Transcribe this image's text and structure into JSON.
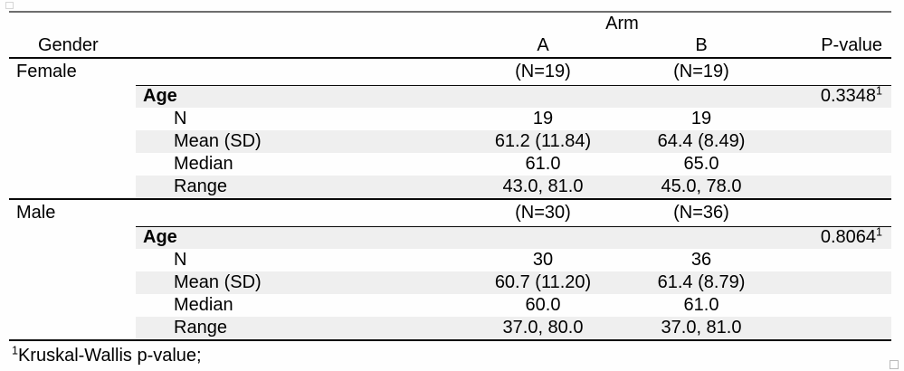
{
  "colors": {
    "top_rule": "#6e6e6e",
    "black_rule": "#0a0a0a",
    "row_shade": "#efefef",
    "text": "#000000"
  },
  "table": {
    "header": {
      "arm_label": "Arm",
      "gender_label": "Gender",
      "col_a": "A",
      "col_b": "B",
      "p_value_label": "P-value"
    },
    "sections": [
      {
        "group": "Female",
        "n_a": "(N=19)",
        "n_b": "(N=19)",
        "variable": "Age",
        "p_value": "0.3348",
        "p_sup": "1",
        "rows": [
          {
            "label": "N",
            "a": "19",
            "b": "19"
          },
          {
            "label": "Mean (SD)",
            "a": "61.2 (11.84)",
            "b": "64.4 (8.49)"
          },
          {
            "label": "Median",
            "a": "61.0",
            "b": "65.0"
          },
          {
            "label": "Range",
            "a": "43.0, 81.0",
            "b": "45.0, 78.0"
          }
        ]
      },
      {
        "group": "Male",
        "n_a": "(N=30)",
        "n_b": "(N=36)",
        "variable": "Age",
        "p_value": "0.8064",
        "p_sup": "1",
        "rows": [
          {
            "label": "N",
            "a": "30",
            "b": "36"
          },
          {
            "label": "Mean (SD)",
            "a": "60.7 (11.20)",
            "b": "61.4 (8.79)"
          },
          {
            "label": "Median",
            "a": "60.0",
            "b": "61.0"
          },
          {
            "label": "Range",
            "a": "37.0, 80.0",
            "b": "37.0, 81.0"
          }
        ]
      }
    ],
    "footnote": {
      "sup": "1",
      "text": "Kruskal-Wallis p-value;"
    }
  }
}
